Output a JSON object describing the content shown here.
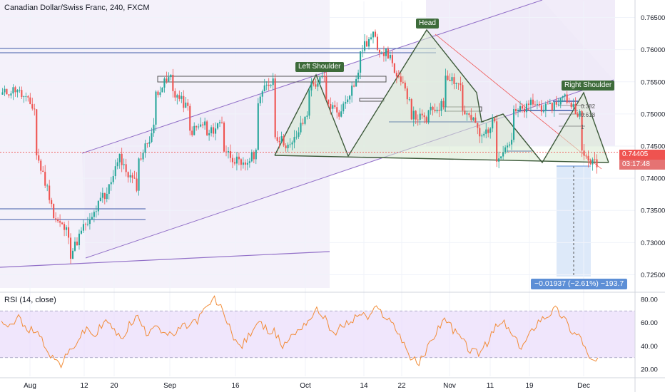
{
  "symbol_title": "Canadian Dollar/Swiss Franc, 240, FXCM",
  "rsi_title": "RSI (14, close)",
  "current_price": "0.74405",
  "countdown": "03:17:48",
  "measure_label": "−0.01937 (−2.61%) −193.7",
  "patterns": {
    "left_shoulder": "Left Shoulder",
    "head": "Head",
    "right_shoulder": "Right Shoulder"
  },
  "fib_labels": [
    "0.382",
    "0.618",
    "1"
  ],
  "colors": {
    "up_candle": "#26a69a",
    "down_candle": "#ef5350",
    "rsi_line": "#f28c38",
    "rsi_band": "#e9dbfb",
    "channel_fill": "#efeaf8",
    "pattern_fill": "#d7ead0",
    "pattern_stroke": "#3d5a3a",
    "price_tag": "#ef5350",
    "measure_fill": "#dde9f9"
  },
  "chart_data": [
    {
      "type": "candlestick",
      "title": "Canadian Dollar/Swiss Franc, 240, FXCM",
      "x_tick_labels": [
        "Aug",
        "12",
        "20",
        "Sep",
        "16",
        "Oct",
        "14",
        "22",
        "Nov",
        "11",
        "19",
        "Dec"
      ],
      "y_tick_labels": [
        "0.76500",
        "0.76000",
        "0.75500",
        "0.75000",
        "0.74500",
        "0.74000",
        "0.73500",
        "0.73000",
        "0.72500"
      ],
      "ylim": [
        0.7225,
        0.7675
      ],
      "series": [
        {
          "points": [
            [
              0.753,
              0.754
            ],
            [
              0.7536,
              0.7508
            ],
            [
              0.7447,
              0.7363
            ],
            [
              0.7342,
              0.7315
            ],
            [
              0.7275,
              0.733
            ],
            [
              0.7318,
              0.7372
            ],
            [
              0.7355,
              0.744
            ],
            [
              0.7425,
              0.7388
            ],
            [
              0.742,
              0.7478
            ],
            [
              0.753,
              0.7558
            ],
            [
              0.754,
              0.7508
            ],
            [
              0.747,
              0.7485
            ],
            [
              0.7462,
              0.749
            ],
            [
              0.7448,
              0.7423
            ],
            [
              0.7412,
              0.744
            ],
            [
              0.752,
              0.7555
            ],
            [
              0.747,
              0.7448
            ],
            [
              0.7446,
              0.75
            ],
            [
              0.754,
              0.7555
            ],
            [
              0.752,
              0.75
            ],
            [
              0.751,
              0.756
            ],
            [
              0.7595,
              0.7625
            ],
            [
              0.7608,
              0.7585
            ],
            [
              0.7568,
              0.7525
            ],
            [
              0.75,
              0.749
            ],
            [
              0.75,
              0.7515
            ],
            [
              0.7565,
              0.7545
            ],
            [
              0.751,
              0.748
            ],
            [
              0.7456,
              0.749
            ],
            [
              0.743,
              0.746
            ],
            [
              0.75,
              0.751
            ],
            [
              0.752,
              0.7508
            ],
            [
              0.7505,
              0.7525
            ],
            [
              0.753,
              0.75
            ],
            [
              0.744,
              0.742
            ]
          ]
        }
      ],
      "annotations": [
        "Left Shoulder",
        "Head",
        "Right Shoulder",
        "0.382",
        "0.618",
        "1",
        "−0.01937 (−2.61%) −193.7"
      ]
    },
    {
      "type": "line",
      "title": "RSI (14, close)",
      "y_tick_labels": [
        "80.00",
        "60.00",
        "40.00",
        "20.00"
      ],
      "ylim": [
        14,
        86
      ],
      "band": [
        30,
        70
      ],
      "series": [
        {
          "values": [
            62,
            58,
            65,
            52,
            55,
            42,
            30,
            24,
            35,
            45,
            55,
            48,
            62,
            56,
            45,
            58,
            65,
            50,
            60,
            52,
            48,
            55,
            58,
            62,
            72,
            80,
            70,
            52,
            38,
            48,
            60,
            55,
            52,
            40,
            48,
            55,
            62,
            70,
            65,
            48,
            58,
            60,
            68,
            64,
            72,
            66,
            58,
            46,
            30,
            25,
            38,
            52,
            64,
            54,
            46,
            36,
            34,
            42,
            56,
            60,
            48,
            38,
            50,
            62,
            66,
            72,
            64,
            52,
            48,
            28,
            27
          ]
        }
      ]
    }
  ]
}
